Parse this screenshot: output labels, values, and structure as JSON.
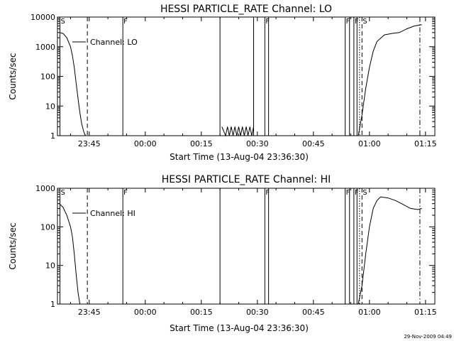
{
  "timestamp": "29-Nov-2009 04:49",
  "chart_data": [
    {
      "type": "line",
      "title": "HESSI PARTICLE_RATE Channel: LO",
      "xlabel": "Start Time (13-Aug-04 23:36:30)",
      "ylabel": "Counts/sec",
      "legend": "Channel: LO",
      "legend_position": "top-left",
      "yscale": "log",
      "ylim": [
        1,
        10000
      ],
      "xlim": [
        "23:36:30",
        "01:17:30"
      ],
      "x_ticks": [
        "23:45",
        "00:00",
        "00:15",
        "00:30",
        "00:45",
        "01:00",
        "01:15"
      ],
      "y_ticks": [
        "1",
        "10",
        "100",
        "1000",
        "10000"
      ],
      "series": [
        {
          "name": "Channel: LO",
          "x": [
            "23:37:00",
            "23:38:00",
            "23:39:00",
            "23:40:00",
            "23:40:30",
            "23:41:00",
            "23:41:30",
            "23:42:00",
            "23:42:30",
            "23:43:00",
            "23:43:30",
            "23:44:00",
            "00:57:00",
            "00:58:00",
            "00:59:00",
            "01:00:00",
            "01:01:00",
            "01:02:00",
            "01:04:00",
            "01:06:00",
            "01:08:00",
            "01:10:00",
            "01:12:00",
            "01:14:00"
          ],
          "y": [
            3000,
            2800,
            2000,
            1000,
            500,
            200,
            60,
            18,
            6,
            2.5,
            1.4,
            1,
            1,
            5,
            40,
            200,
            700,
            1500,
            2500,
            2800,
            3000,
            4000,
            5000,
            5500
          ],
          "segments": [
            [
              0,
              11
            ],
            [
              12,
              23
            ]
          ]
        },
        {
          "name": "",
          "style": "spikes",
          "x": [
            "00:20:30",
            "00:21:30",
            "00:22:00",
            "00:22:30",
            "00:23:00",
            "00:23:30",
            "00:24:00",
            "00:24:30",
            "00:25:00",
            "00:25:30",
            "00:26:00",
            "00:26:30",
            "00:27:00",
            "00:27:30",
            "00:28:00",
            "00:28:30",
            "00:29:00"
          ],
          "y": [
            2,
            1,
            2,
            1,
            2,
            1,
            2,
            1,
            2,
            1,
            2,
            1,
            2,
            1,
            2,
            1,
            2
          ]
        }
      ],
      "event_lines": [
        {
          "time": "23:37:10",
          "style": "solid",
          "label": "S"
        },
        {
          "time": "23:44:30",
          "style": "dashed",
          "label": ""
        },
        {
          "time": "23:54:00",
          "style": "solid",
          "label": "F"
        },
        {
          "time": "00:20:00",
          "style": "solid",
          "label": ""
        },
        {
          "time": "00:29:00",
          "style": "solid",
          "label": ""
        },
        {
          "time": "00:32:00",
          "style": "solid",
          "label": "F"
        },
        {
          "time": "00:33:00",
          "style": "solid",
          "label": ""
        },
        {
          "time": "00:53:30",
          "style": "solid",
          "label": "F"
        },
        {
          "time": "00:54:40",
          "style": "solid",
          "label": ""
        },
        {
          "time": "00:55:50",
          "style": "solid",
          "label": "F"
        },
        {
          "time": "00:56:40",
          "style": "solid",
          "label": ""
        },
        {
          "time": "00:57:20",
          "style": "dotted",
          "label": ""
        },
        {
          "time": "00:58:00",
          "style": "dashed",
          "label": "S"
        },
        {
          "time": "01:13:30",
          "style": "dashdot",
          "label": ""
        }
      ]
    },
    {
      "type": "line",
      "title": "HESSI PARTICLE_RATE Channel: HI",
      "xlabel": "Start Time (13-Aug-04 23:36:30)",
      "ylabel": "Counts/sec",
      "legend": "Channel: HI",
      "legend_position": "top-left",
      "yscale": "log",
      "ylim": [
        1,
        1000
      ],
      "xlim": [
        "23:36:30",
        "01:17:30"
      ],
      "x_ticks": [
        "23:45",
        "00:00",
        "00:15",
        "00:30",
        "00:45",
        "01:00",
        "01:15"
      ],
      "y_ticks": [
        "1",
        "10",
        "100",
        "1000"
      ],
      "series": [
        {
          "name": "Channel: HI",
          "x": [
            "23:37:00",
            "23:38:00",
            "23:39:00",
            "23:40:00",
            "23:40:30",
            "23:41:00",
            "23:41:30",
            "23:42:00",
            "23:42:30",
            "00:57:00",
            "00:58:00",
            "00:59:00",
            "01:00:00",
            "01:01:00",
            "01:02:00",
            "01:03:00",
            "01:05:00",
            "01:07:00",
            "01:09:00",
            "01:11:00",
            "01:13:00",
            "01:14:00"
          ],
          "y": [
            400,
            320,
            200,
            100,
            55,
            20,
            6,
            2,
            1,
            1,
            3,
            20,
            100,
            300,
            480,
            600,
            560,
            480,
            380,
            300,
            280,
            300
          ],
          "segments": [
            [
              0,
              8
            ],
            [
              9,
              21
            ]
          ]
        }
      ],
      "event_lines": [
        {
          "time": "23:37:10",
          "style": "solid",
          "label": "S"
        },
        {
          "time": "23:44:30",
          "style": "dashed",
          "label": ""
        },
        {
          "time": "23:54:00",
          "style": "solid",
          "label": "F"
        },
        {
          "time": "00:20:00",
          "style": "solid",
          "label": ""
        },
        {
          "time": "00:32:00",
          "style": "solid",
          "label": "F"
        },
        {
          "time": "00:33:00",
          "style": "solid",
          "label": ""
        },
        {
          "time": "00:53:30",
          "style": "solid",
          "label": "F"
        },
        {
          "time": "00:54:40",
          "style": "solid",
          "label": ""
        },
        {
          "time": "00:55:50",
          "style": "solid",
          "label": "F"
        },
        {
          "time": "00:56:40",
          "style": "solid",
          "label": ""
        },
        {
          "time": "00:57:20",
          "style": "dotted",
          "label": ""
        },
        {
          "time": "00:58:00",
          "style": "dashed",
          "label": "S"
        },
        {
          "time": "01:13:30",
          "style": "dashdot",
          "label": ""
        }
      ]
    }
  ]
}
